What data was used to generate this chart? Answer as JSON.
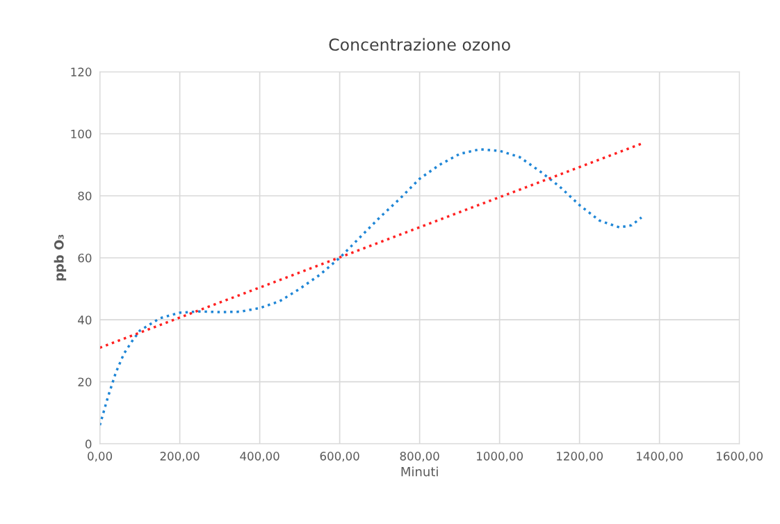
{
  "chart_data": {
    "type": "line",
    "title": "Concentrazione ozono",
    "xlabel": "Minuti",
    "ylabel": "ppb O₃",
    "series": [
      {
        "color": "#1f86d6",
        "line_style": "dotted",
        "x": [
          0,
          20,
          40,
          60,
          80,
          100,
          150,
          200,
          250,
          300,
          350,
          400,
          450,
          500,
          550,
          600,
          650,
          700,
          750,
          800,
          850,
          900,
          950,
          1000,
          1050,
          1100,
          1150,
          1200,
          1250,
          1300,
          1330,
          1355
        ],
        "values": [
          6,
          15,
          23,
          29,
          33,
          36.5,
          40.5,
          42.3,
          42.7,
          42.5,
          42.6,
          43.8,
          46,
          50,
          54.5,
          60,
          66.5,
          73,
          79,
          85.5,
          90,
          93.5,
          95,
          94.5,
          92.5,
          88,
          83,
          77,
          72,
          69.8,
          70.5,
          73
        ]
      },
      {
        "color": "#ff2020",
        "line_style": "dotted",
        "x": [
          0,
          1355
        ],
        "values": [
          31,
          96.8
        ]
      }
    ],
    "xlim": [
      0,
      1600
    ],
    "xticks": [
      {
        "value": 0,
        "label": "0,00"
      },
      {
        "value": 200,
        "label": "200,00"
      },
      {
        "value": 400,
        "label": "400,00"
      },
      {
        "value": 600,
        "label": "600,00"
      },
      {
        "value": 800,
        "label": "800,00"
      },
      {
        "value": 1000,
        "label": "1000,00"
      },
      {
        "value": 1200,
        "label": "1200,00"
      },
      {
        "value": 1400,
        "label": "1400,00"
      },
      {
        "value": 1600,
        "label": "1600,00"
      }
    ],
    "ylim": [
      0,
      120
    ],
    "yticks": [
      0,
      20,
      40,
      60,
      80,
      100,
      120
    ],
    "grid": true,
    "legend": false,
    "marker": "none"
  }
}
